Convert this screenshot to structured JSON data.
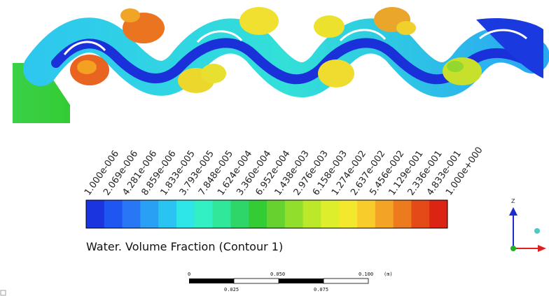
{
  "colorbar": {
    "title": "Water. Volume Fraction (Contour 1)",
    "labels": [
      "1.000e-006",
      "2.069e-006",
      "4.281e-006",
      "8.859e-006",
      "1.833e-005",
      "3.793e-005",
      "7.848e-005",
      "1.624e-004",
      "3.360e-004",
      "6.952e-004",
      "1.438e-003",
      "2.976e-003",
      "6.158e-003",
      "1.274e-002",
      "2.637e-002",
      "5.456e-002",
      "1.129e-001",
      "2.336e-001",
      "4.833e-001",
      "1.000e+000"
    ],
    "colors": [
      "#1a35e0",
      "#1f55f0",
      "#2878f5",
      "#2aa0f5",
      "#29c4f2",
      "#2ee6e8",
      "#32f0c4",
      "#30e89a",
      "#2ed66a",
      "#34cc34",
      "#66d230",
      "#92de2c",
      "#bce82a",
      "#ddee2a",
      "#f4e82c",
      "#f8cc2a",
      "#f4a424",
      "#ee7a1e",
      "#e44a18",
      "#dc2414"
    ]
  },
  "scale_bar": {
    "top_labels": [
      "0",
      "0.050",
      "0.100"
    ],
    "bottom_labels": [
      "0.025",
      "0.075"
    ],
    "unit": "(m)"
  },
  "triad": {
    "z_label": "Z"
  }
}
